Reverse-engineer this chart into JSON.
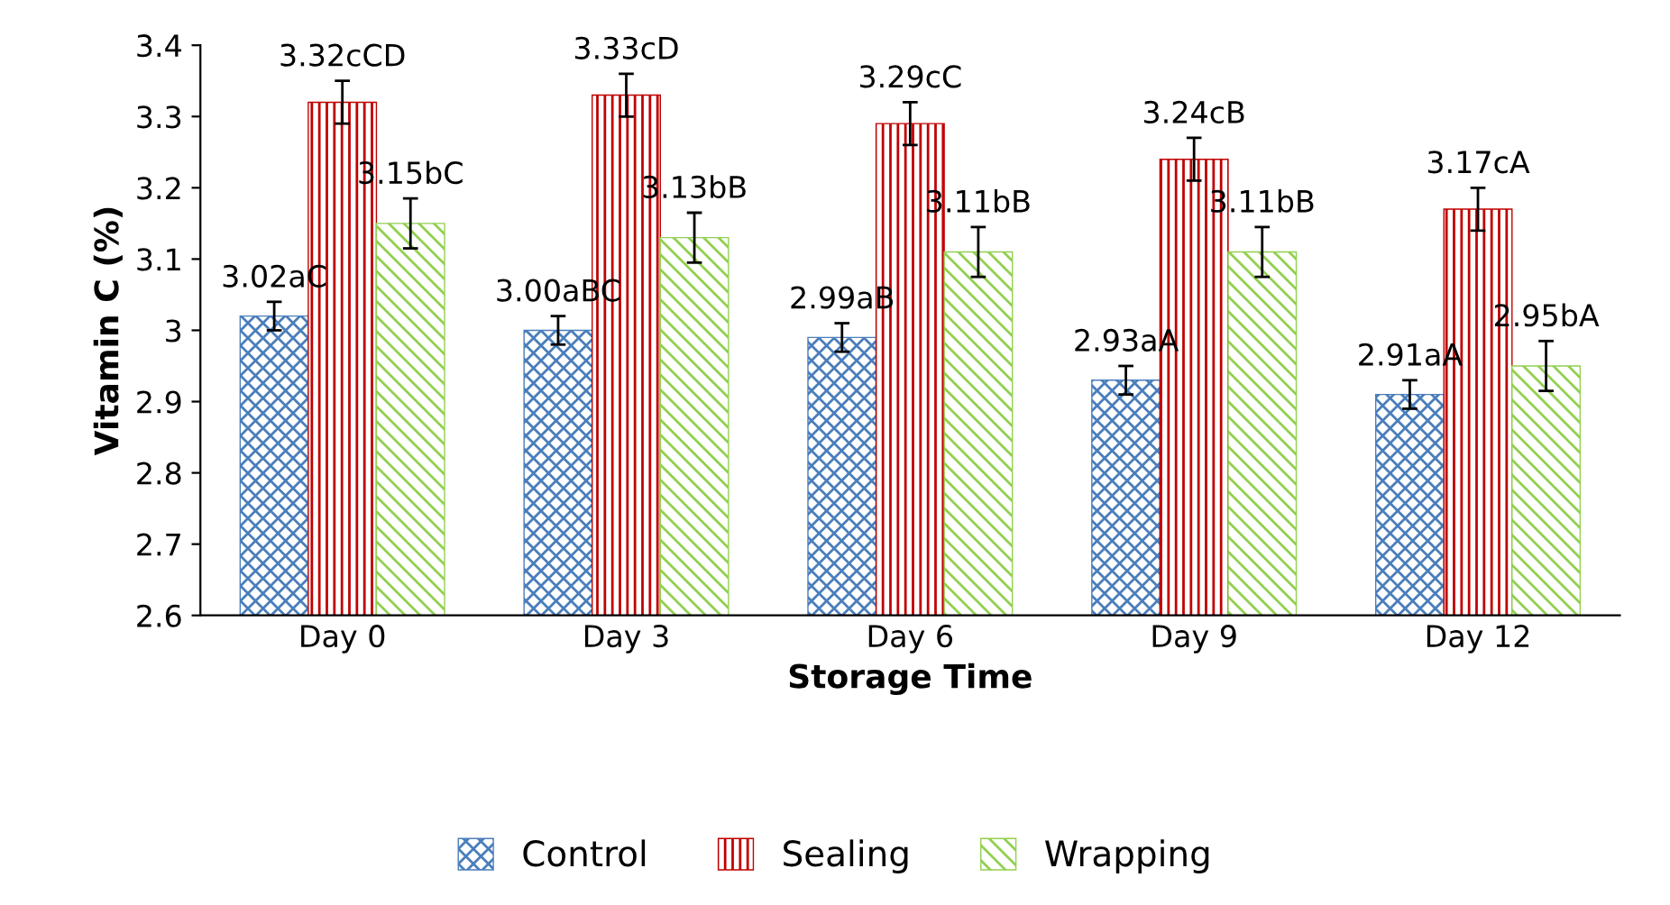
{
  "chart_data": {
    "type": "bar",
    "xlabel": "Storage Time",
    "ylabel": "Vitamin C (%)",
    "categories": [
      "Day 0",
      "Day 3",
      "Day 6",
      "Day 9",
      "Day 12"
    ],
    "series": [
      {
        "name": "Control",
        "color": "#4a7ebb",
        "values": [
          3.02,
          3.0,
          2.99,
          2.93,
          2.91
        ],
        "errors": [
          0.02,
          0.02,
          0.02,
          0.02,
          0.02
        ],
        "value_labels": [
          "3.02aC",
          "3.00aBC",
          "2.99aB",
          "2.93aA",
          "2.91aA"
        ]
      },
      {
        "name": "Sealing",
        "color": "#c00000",
        "values": [
          3.32,
          3.33,
          3.29,
          3.24,
          3.17
        ],
        "errors": [
          0.03,
          0.03,
          0.03,
          0.03,
          0.03
        ],
        "value_labels": [
          "3.32cCD",
          "3.33cD",
          "3.29cC",
          "3.24cB",
          "3.17cA"
        ]
      },
      {
        "name": "Wrapping",
        "color": "#92d050",
        "values": [
          3.15,
          3.13,
          3.11,
          3.11,
          2.95
        ],
        "errors": [
          0.035,
          0.035,
          0.035,
          0.035,
          0.035
        ],
        "value_labels": [
          "3.15bC",
          "3.13bB",
          "3.11bB",
          "3.11bB",
          "2.95bA"
        ]
      }
    ],
    "ylim": [
      2.6,
      3.4
    ],
    "yticks": [
      2.6,
      2.7,
      2.8,
      2.9,
      3,
      3.1,
      3.2,
      3.3,
      3.4
    ],
    "grid": false,
    "legend": "bottom"
  }
}
